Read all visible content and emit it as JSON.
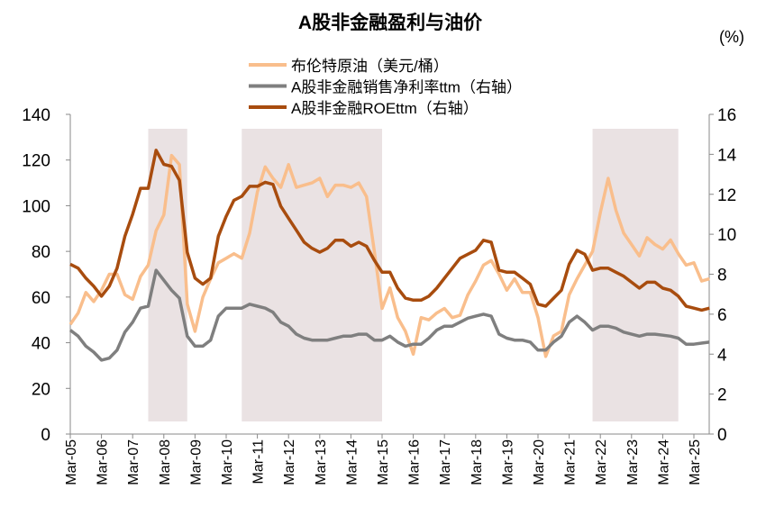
{
  "chart_data": {
    "type": "line",
    "title": "A股非金融盈利与油价",
    "right_unit": "(%)",
    "x": [
      "Mar-05",
      "Jun-05",
      "Sep-05",
      "Dec-05",
      "Mar-06",
      "Jun-06",
      "Sep-06",
      "Dec-06",
      "Mar-07",
      "Jun-07",
      "Sep-07",
      "Dec-07",
      "Mar-08",
      "Jun-08",
      "Sep-08",
      "Dec-08",
      "Mar-09",
      "Jun-09",
      "Sep-09",
      "Dec-09",
      "Mar-10",
      "Jun-10",
      "Sep-10",
      "Dec-10",
      "Mar-11",
      "Jun-11",
      "Sep-11",
      "Dec-11",
      "Mar-12",
      "Jun-12",
      "Sep-12",
      "Dec-12",
      "Mar-13",
      "Jun-13",
      "Sep-13",
      "Dec-13",
      "Mar-14",
      "Jun-14",
      "Sep-14",
      "Dec-14",
      "Mar-15",
      "Jun-15",
      "Sep-15",
      "Dec-15",
      "Mar-16",
      "Jun-16",
      "Sep-16",
      "Dec-16",
      "Mar-17",
      "Jun-17",
      "Sep-17",
      "Dec-17",
      "Mar-18",
      "Jun-18",
      "Sep-18",
      "Dec-18",
      "Mar-19",
      "Jun-19",
      "Sep-19",
      "Dec-19",
      "Mar-20",
      "Jun-20",
      "Sep-20",
      "Dec-20",
      "Mar-21",
      "Jun-21",
      "Sep-21",
      "Dec-21",
      "Mar-22",
      "Jun-22",
      "Sep-22",
      "Dec-22",
      "Mar-23",
      "Jun-23",
      "Sep-23",
      "Dec-23",
      "Mar-24",
      "Jun-24",
      "Sep-24",
      "Dec-24",
      "Mar-25",
      "Jun-25",
      "Sep-25"
    ],
    "x_tick_labels": [
      "Mar-05",
      "Mar-06",
      "Mar-07",
      "Mar-08",
      "Mar-09",
      "Mar-10",
      "Mar-11",
      "Mar-12",
      "Mar-13",
      "Mar-14",
      "Mar-15",
      "Mar-16",
      "Mar-17",
      "Mar-18",
      "Mar-19",
      "Mar-20",
      "Mar-21",
      "Mar-22",
      "Mar-23",
      "Mar-24",
      "Mar-25"
    ],
    "y_left": {
      "lim": [
        0,
        140
      ],
      "ticks": [
        "0",
        "20",
        "40",
        "60",
        "80",
        "100",
        "120",
        "140"
      ]
    },
    "y_right": {
      "lim": [
        0,
        16
      ],
      "ticks": [
        "0",
        "2",
        "4",
        "6",
        "8",
        "10",
        "12",
        "14",
        "16"
      ]
    },
    "grid": false,
    "legend_position": "top",
    "shaded_periods": [
      [
        "Sep-07",
        "Dec-08"
      ],
      [
        "Sep-10",
        "Mar-15"
      ],
      [
        "Dec-21",
        "Sep-24"
      ]
    ],
    "shade_color": "#EAE2E3",
    "series": [
      {
        "name": "布伦特原油（美元/桶）",
        "axis": "left",
        "color": "#F9BE8C",
        "values": [
          48,
          53,
          62,
          58,
          63,
          70,
          70,
          61,
          59,
          69,
          74,
          89,
          96,
          122,
          118,
          57,
          45,
          60,
          68,
          75,
          77,
          79,
          77,
          88,
          106,
          117,
          112,
          108,
          118,
          108,
          109,
          110,
          112,
          104,
          109,
          109,
          108,
          110,
          104,
          80,
          55,
          64,
          51,
          45,
          35,
          51,
          50,
          53,
          55,
          51,
          52,
          61,
          67,
          74,
          76,
          70,
          63,
          68,
          62,
          62,
          51,
          34,
          43,
          45,
          61,
          68,
          74,
          80,
          97,
          112,
          98,
          88,
          83,
          78,
          86,
          83,
          81,
          85,
          79,
          74,
          75,
          67,
          68
        ]
      },
      {
        "name": "A股非金融销售净利率ttm（右轴）",
        "axis": "right",
        "color": "#7F7F7F",
        "values": [
          5.2,
          4.9,
          4.4,
          4.1,
          3.7,
          3.8,
          4.2,
          5.1,
          5.6,
          6.3,
          6.4,
          8.2,
          7.7,
          7.2,
          6.8,
          4.9,
          4.4,
          4.4,
          4.7,
          5.9,
          6.3,
          6.3,
          6.3,
          6.5,
          6.4,
          6.3,
          6.1,
          5.6,
          5.4,
          5.0,
          4.8,
          4.7,
          4.7,
          4.7,
          4.8,
          4.9,
          4.9,
          5.0,
          5.0,
          4.7,
          4.7,
          4.9,
          4.6,
          4.4,
          4.5,
          4.5,
          4.8,
          5.2,
          5.4,
          5.4,
          5.6,
          5.8,
          5.9,
          6.0,
          5.9,
          5.0,
          4.8,
          4.7,
          4.7,
          4.6,
          4.2,
          4.2,
          4.6,
          4.9,
          5.6,
          5.9,
          5.6,
          5.2,
          5.4,
          5.4,
          5.3,
          5.1,
          5.0,
          4.9,
          5.0,
          5.0,
          4.95,
          4.9,
          4.8,
          4.5,
          4.5,
          4.55,
          4.6
        ]
      },
      {
        "name": "A股非金融ROEttm（右轴）",
        "axis": "right",
        "color": "#A84C0E",
        "values": [
          8.5,
          8.3,
          7.8,
          7.4,
          6.9,
          7.4,
          8.3,
          9.9,
          11.0,
          12.3,
          12.3,
          14.2,
          13.5,
          13.4,
          12.7,
          9.1,
          7.8,
          7.5,
          7.8,
          9.9,
          10.9,
          11.7,
          11.9,
          12.4,
          12.4,
          12.6,
          12.5,
          11.4,
          10.8,
          10.2,
          9.6,
          9.3,
          9.1,
          9.3,
          9.7,
          9.7,
          9.4,
          9.6,
          9.4,
          8.7,
          8.1,
          8.1,
          7.3,
          6.8,
          6.7,
          6.7,
          6.9,
          7.3,
          7.8,
          8.3,
          8.8,
          9.0,
          9.2,
          9.7,
          9.6,
          8.2,
          8.1,
          8.1,
          7.8,
          7.5,
          6.5,
          6.4,
          6.8,
          7.2,
          8.5,
          9.2,
          9.0,
          8.2,
          8.3,
          8.3,
          8.1,
          7.9,
          7.6,
          7.3,
          7.6,
          7.6,
          7.3,
          7.2,
          6.9,
          6.4,
          6.3,
          6.2,
          6.3
        ]
      }
    ]
  }
}
